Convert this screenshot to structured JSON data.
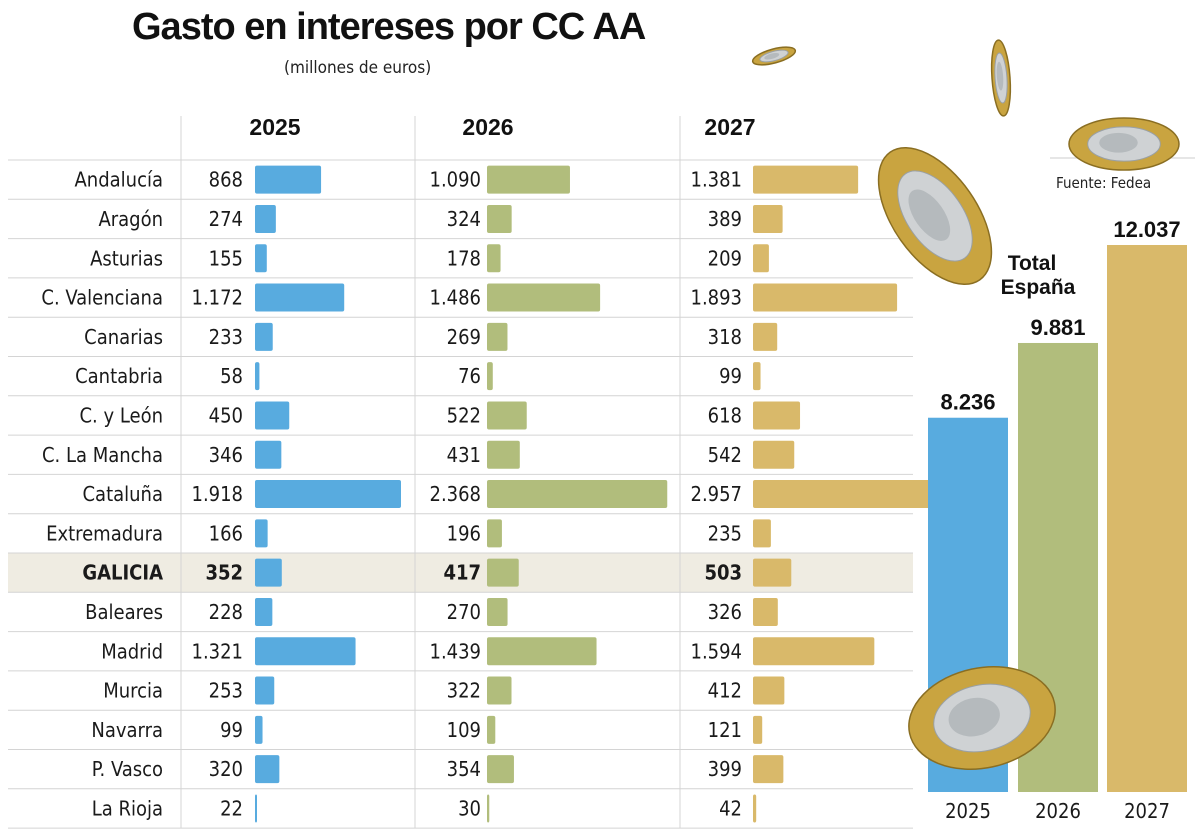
{
  "title": "Gasto en intereses por CC AA",
  "subtitle": "(millones de euros)",
  "source": "Fuente: Fedea",
  "chart_data": [
    {
      "type": "bar",
      "orientation": "horizontal",
      "years": [
        "2025",
        "2026",
        "2027"
      ],
      "categories": [
        "Andalucía",
        "Aragón",
        "Asturias",
        "C. Valenciana",
        "Canarias",
        "Cantabria",
        "C. y León",
        "C. La Mancha",
        "Cataluña",
        "Extremadura",
        "GALICIA",
        "Baleares",
        "Madrid",
        "Murcia",
        "Navarra",
        "P. Vasco",
        "La Rioja"
      ],
      "highlight": "GALICIA",
      "series": [
        {
          "values": [
            868,
            274,
            155,
            1172,
            233,
            58,
            450,
            346,
            1918,
            166,
            352,
            228,
            1321,
            253,
            99,
            320,
            22
          ],
          "labels": [
            "868",
            "274",
            "155",
            "1.172",
            "233",
            "58",
            "450",
            "346",
            "1.918",
            "166",
            "352",
            "228",
            "1.321",
            "253",
            "99",
            "320",
            "22"
          ],
          "color": "#58abdf"
        },
        {
          "values": [
            1090,
            324,
            178,
            1486,
            269,
            76,
            522,
            431,
            2368,
            196,
            417,
            270,
            1439,
            322,
            109,
            354,
            30
          ],
          "labels": [
            "1.090",
            "324",
            "178",
            "1.486",
            "269",
            "76",
            "522",
            "431",
            "2.368",
            "196",
            "417",
            "270",
            "1.439",
            "322",
            "109",
            "354",
            "30"
          ],
          "color": "#b1bd7c"
        },
        {
          "values": [
            1381,
            389,
            209,
            1893,
            318,
            99,
            618,
            542,
            2957,
            235,
            503,
            326,
            1594,
            412,
            121,
            399,
            42
          ],
          "labels": [
            "1.381",
            "389",
            "209",
            "1.893",
            "318",
            "99",
            "618",
            "542",
            "2.957",
            "235",
            "503",
            "326",
            "1.594",
            "412",
            "121",
            "399",
            "42"
          ],
          "color": "#d9b96a"
        }
      ]
    },
    {
      "type": "bar",
      "title": "Total España",
      "categories": [
        "2025",
        "2026",
        "2027"
      ],
      "values": [
        8236,
        9881,
        12037
      ],
      "labels": [
        "8.236",
        "9.881",
        "12.037"
      ],
      "colors": [
        "#58abdf",
        "#b1bd7c",
        "#d9b96a"
      ]
    }
  ]
}
